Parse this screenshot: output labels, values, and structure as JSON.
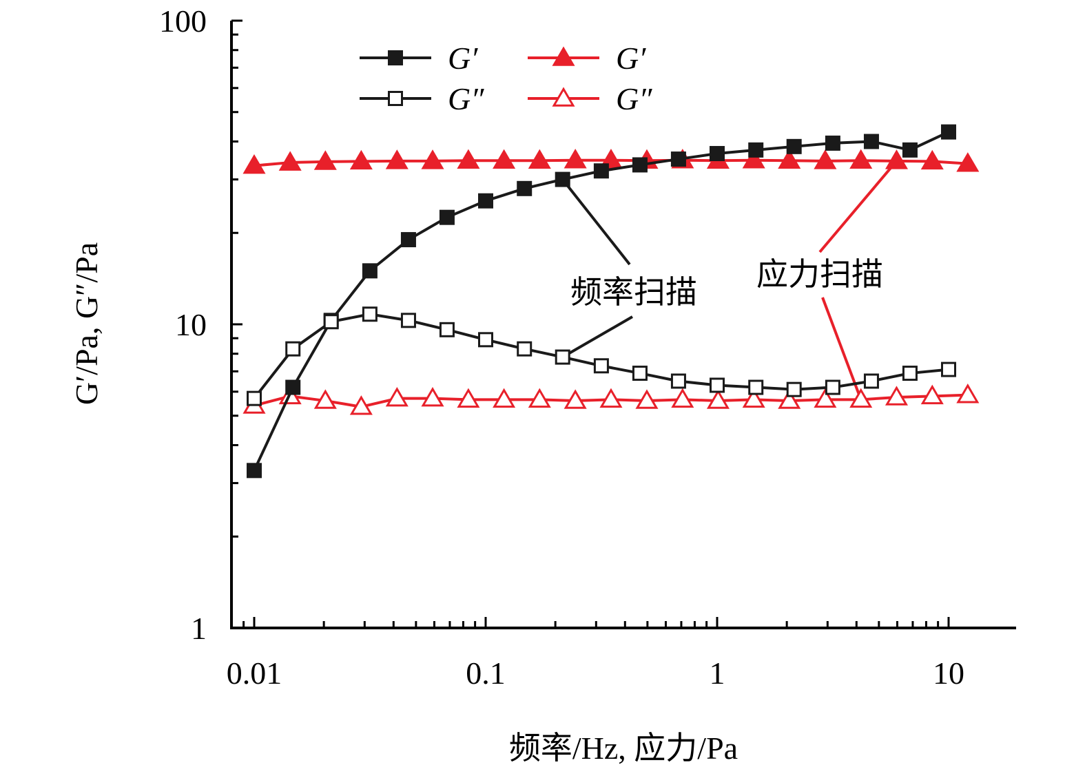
{
  "chart_data": {
    "type": "line",
    "title": "",
    "xlabel": "频率/Hz, 应力/Pa",
    "ylabel": "G′/Pa, G″/Pa",
    "x_scale": "log",
    "y_scale": "log",
    "xlim": [
      0.008,
      20
    ],
    "ylim": [
      1,
      100
    ],
    "x_ticks": [
      0.01,
      0.1,
      1,
      10
    ],
    "x_tick_labels": [
      "0.01",
      "0.1",
      "1",
      "10"
    ],
    "y_ticks": [
      1,
      10,
      100
    ],
    "y_tick_labels": [
      "1",
      "10",
      "100"
    ],
    "grid": false,
    "legend_position": "top-left",
    "colors": {
      "black": "#1a1a1a",
      "red": "#e8202a"
    },
    "series": [
      {
        "name": "G′",
        "color": "#1a1a1a",
        "marker": "square-filled",
        "x": [
          0.01,
          0.0147,
          0.0215,
          0.0316,
          0.0464,
          0.0681,
          0.1,
          0.147,
          0.215,
          0.316,
          0.464,
          0.681,
          1,
          1.47,
          2.15,
          3.16,
          4.64,
          6.81,
          10
        ],
        "y": [
          3.3,
          6.2,
          10.3,
          15,
          19,
          22.5,
          25.5,
          28,
          30,
          32,
          33.5,
          35,
          36.5,
          37.5,
          38.5,
          39.5,
          40,
          37.5,
          43
        ]
      },
      {
        "name": "G″",
        "color": "#1a1a1a",
        "marker": "square-open",
        "x": [
          0.01,
          0.0147,
          0.0215,
          0.0316,
          0.0464,
          0.0681,
          0.1,
          0.147,
          0.215,
          0.316,
          0.464,
          0.681,
          1,
          1.47,
          2.15,
          3.16,
          4.64,
          6.81,
          10
        ],
        "y": [
          5.7,
          8.3,
          10.2,
          10.8,
          10.3,
          9.6,
          8.9,
          8.3,
          7.8,
          7.3,
          6.9,
          6.5,
          6.3,
          6.2,
          6.1,
          6.2,
          6.5,
          6.9,
          7.1
        ]
      },
      {
        "name": "G′",
        "color": "#e8202a",
        "marker": "triangle-filled",
        "x": [
          0.01,
          0.0143,
          0.0203,
          0.029,
          0.0414,
          0.059,
          0.0842,
          0.12,
          0.171,
          0.244,
          0.348,
          0.497,
          0.709,
          1.01,
          1.44,
          2.05,
          2.93,
          4.18,
          5.96,
          8.5,
          12.1
        ],
        "y": [
          33.3,
          34.1,
          34.3,
          34.4,
          34.5,
          34.5,
          34.6,
          34.6,
          34.6,
          34.7,
          34.7,
          34.6,
          34.7,
          34.6,
          34.7,
          34.6,
          34.5,
          34.6,
          34.5,
          34.4,
          33.8
        ]
      },
      {
        "name": "G″",
        "color": "#e8202a",
        "marker": "triangle-open",
        "x": [
          0.01,
          0.0143,
          0.0203,
          0.029,
          0.0414,
          0.059,
          0.0842,
          0.12,
          0.171,
          0.244,
          0.348,
          0.497,
          0.709,
          1.01,
          1.44,
          2.05,
          2.93,
          4.18,
          5.96,
          8.5,
          12.1
        ],
        "y": [
          5.4,
          5.8,
          5.6,
          5.35,
          5.7,
          5.7,
          5.65,
          5.65,
          5.65,
          5.6,
          5.65,
          5.6,
          5.65,
          5.6,
          5.65,
          5.6,
          5.65,
          5.65,
          5.75,
          5.8,
          5.85
        ]
      }
    ],
    "annotations": [
      {
        "text": "频率扫描",
        "color": "#1a1a1a",
        "pointers": [
          [
            0.215,
            30
          ],
          [
            0.215,
            7.8
          ]
        ]
      },
      {
        "text": "应力扫描",
        "color": "#e8202a",
        "pointers": [
          [
            5.96,
            34.5
          ],
          [
            4.18,
            5.65
          ]
        ]
      }
    ]
  }
}
